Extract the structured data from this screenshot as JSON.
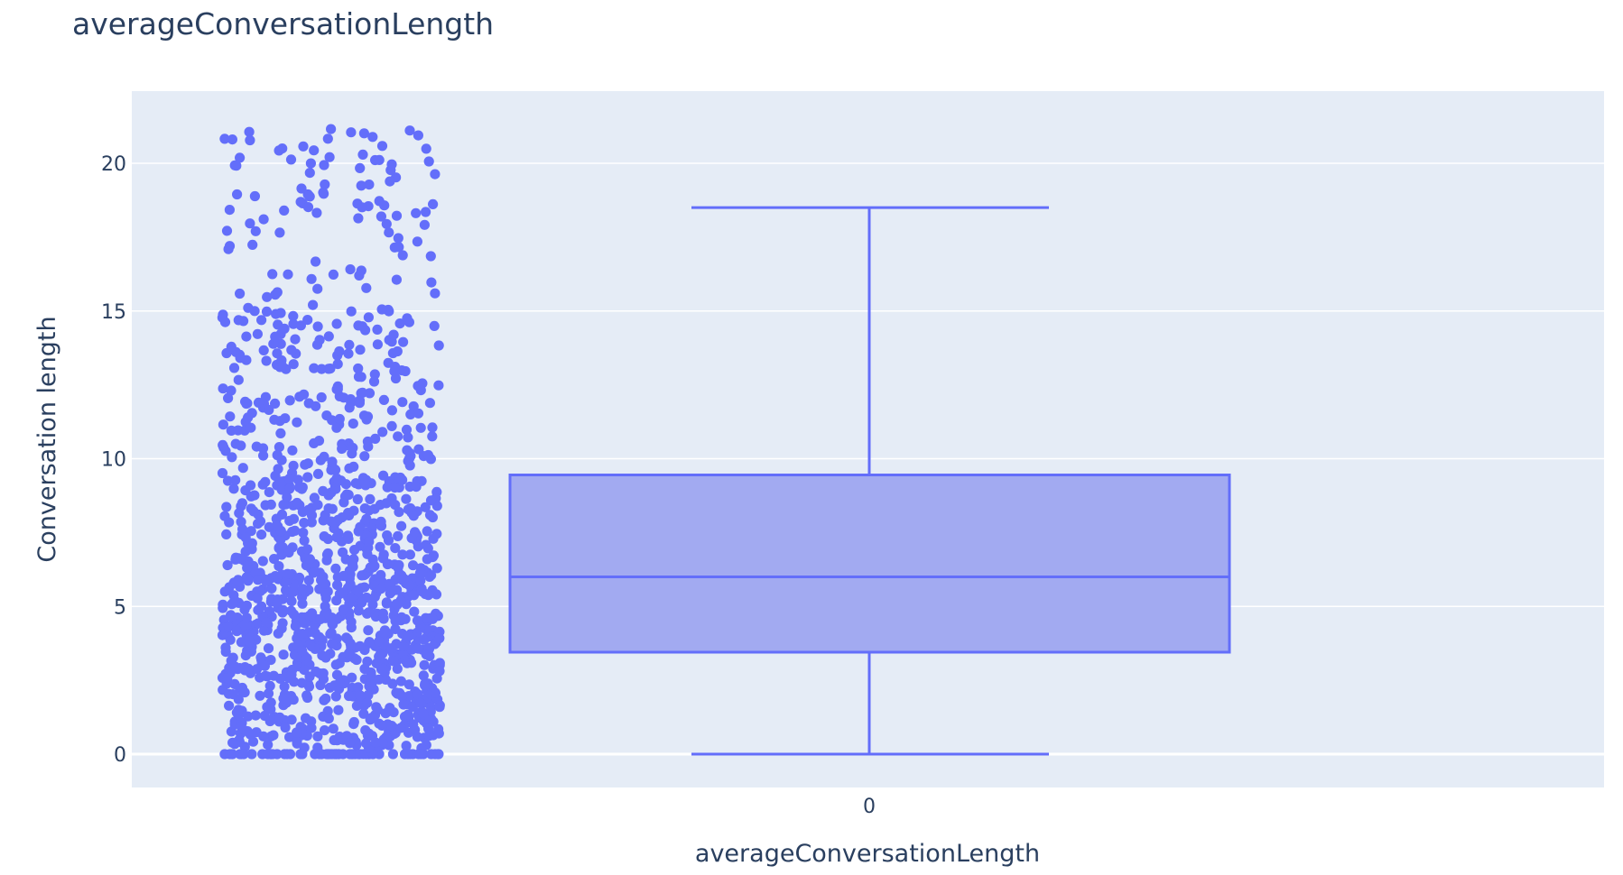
{
  "chart_data": {
    "type": "box",
    "title": "averageConversationLength",
    "xlabel": "averageConversationLength",
    "ylabel": "Conversation length",
    "categories": [
      "0"
    ],
    "yticks": [
      "0",
      "5",
      "10",
      "15",
      "20"
    ],
    "ylim": [
      -1.2,
      22.4
    ],
    "grid": true,
    "legend": "none",
    "points": "all (jittered to the left of the box)",
    "approx_point_count": 1300,
    "series": [
      {
        "category": "0",
        "lower_fence": 0,
        "q1": 3.45,
        "median": 6.0,
        "q3": 9.45,
        "upper_fence": 18.5,
        "max": 21.3
      }
    ],
    "colors": {
      "marker": "#636efa",
      "box_fill": "#a2aaf1",
      "plot_bg": "#e5ecf6",
      "grid": "#ffffff",
      "text": "#2a3f5f"
    }
  }
}
